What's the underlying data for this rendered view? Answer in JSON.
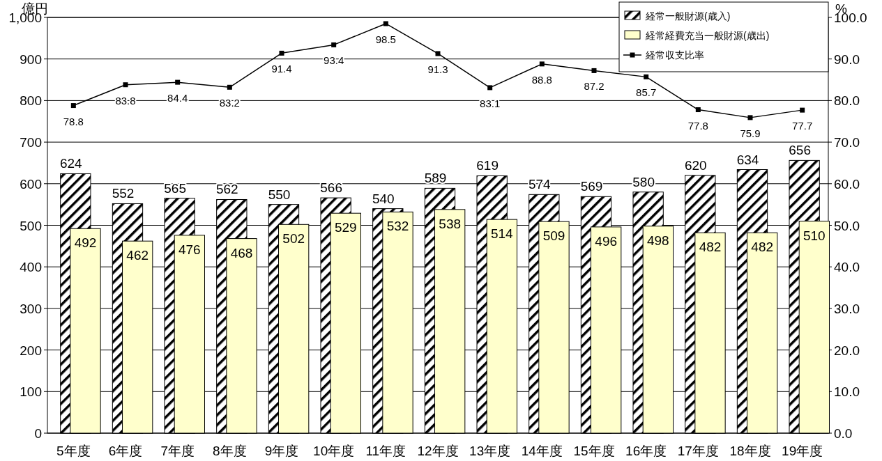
{
  "chart_data": {
    "type": "bar",
    "ylabel": "億円",
    "y2label": "%",
    "categories": [
      "5年度",
      "6年度",
      "7年度",
      "8年度",
      "9年度",
      "10年度",
      "11年度",
      "12年度",
      "13年度",
      "14年度",
      "15年度",
      "16年度",
      "17年度",
      "18年度",
      "19年度"
    ],
    "series": [
      {
        "name": "経常一般財源(歳入)",
        "color": "#000000",
        "values": [
          624,
          552,
          565,
          562,
          550,
          566,
          540,
          589,
          619,
          574,
          569,
          580,
          620,
          634,
          656
        ]
      },
      {
        "name": "経常経費充当一般財源(歳出)",
        "color": "#ffffcc",
        "values": [
          492,
          462,
          476,
          468,
          502,
          529,
          532,
          538,
          514,
          509,
          496,
          498,
          482,
          482,
          510
        ]
      },
      {
        "name": "経常収支比率",
        "type": "line",
        "axis": "y2",
        "color": "#000000",
        "marker": "square",
        "values": [
          78.8,
          83.8,
          84.4,
          83.2,
          91.4,
          93.4,
          98.5,
          91.3,
          83.1,
          88.8,
          87.2,
          85.7,
          77.8,
          75.9,
          77.7
        ]
      }
    ],
    "ylim": [
      0,
      1000
    ],
    "yticks": [
      0,
      100,
      200,
      300,
      400,
      500,
      600,
      700,
      800,
      900,
      {
        "value": 1000,
        "label": "1,000"
      }
    ],
    "y2lim": [
      0,
      100
    ],
    "y2ticks": [
      {
        "value": 0,
        "label": "0.0"
      },
      {
        "value": 10,
        "label": "10.0"
      },
      {
        "value": 20,
        "label": "20.0"
      },
      {
        "value": 30,
        "label": "30.0"
      },
      {
        "value": 40,
        "label": "40.0"
      },
      {
        "value": 50,
        "label": "50.0"
      },
      {
        "value": 60,
        "label": "60.0"
      },
      {
        "value": 70,
        "label": "70.0"
      },
      {
        "value": 80,
        "label": "80.0"
      },
      {
        "value": 90,
        "label": "90.0"
      },
      {
        "value": 100,
        "label": "100.0"
      }
    ],
    "grid": "y",
    "legend": "top right",
    "data_labels": true
  }
}
